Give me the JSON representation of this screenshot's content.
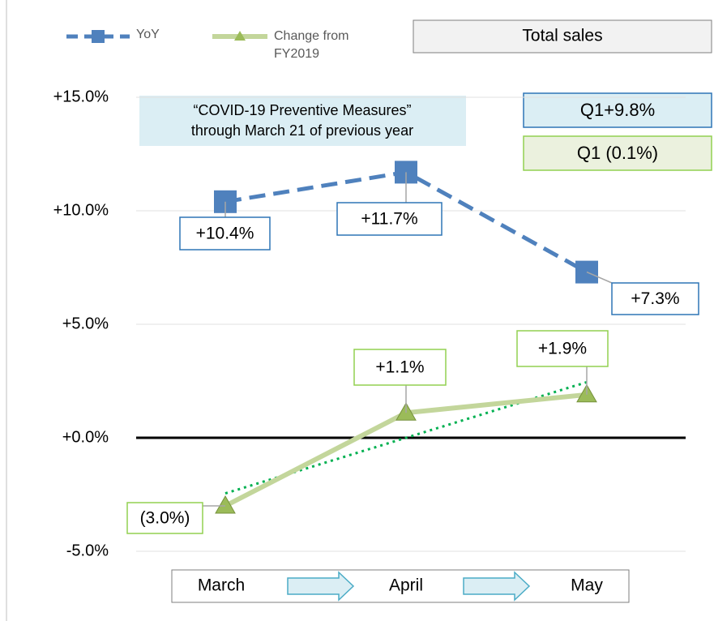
{
  "chart_data": {
    "type": "line",
    "categories": [
      "March",
      "April",
      "May"
    ],
    "series": [
      {
        "name": "YoY",
        "color": "#4f81bd",
        "values": [
          10.4,
          11.7,
          7.3
        ],
        "value_labels": [
          "+10.4%",
          "+11.7%",
          "+7.3%"
        ]
      },
      {
        "name": "Change from FY2019",
        "color": "#c3d69b",
        "marker_color": "#9bbb59",
        "values": [
          -3.0,
          1.1,
          1.9
        ],
        "value_labels": [
          "(3.0%)",
          "+1.1%",
          "+1.9%"
        ],
        "trendline": true
      }
    ],
    "ylim": [
      -5,
      15
    ],
    "yticks": [
      {
        "value": -5,
        "label": "-5.0%"
      },
      {
        "value": 0,
        "label": "+0.0%"
      },
      {
        "value": 5,
        "label": "+5.0%"
      },
      {
        "value": 10,
        "label": "+10.0%"
      },
      {
        "value": 15,
        "label": "+15.0%"
      }
    ],
    "grid": true,
    "annotations": {
      "covid": [
        "“COVID-19 Preventive Measures”",
        "through March 21 of previous year"
      ],
      "total": "Total sales",
      "q1_yoy": "Q1+9.8%",
      "q1_change": "Q1 (0.1%)"
    }
  }
}
